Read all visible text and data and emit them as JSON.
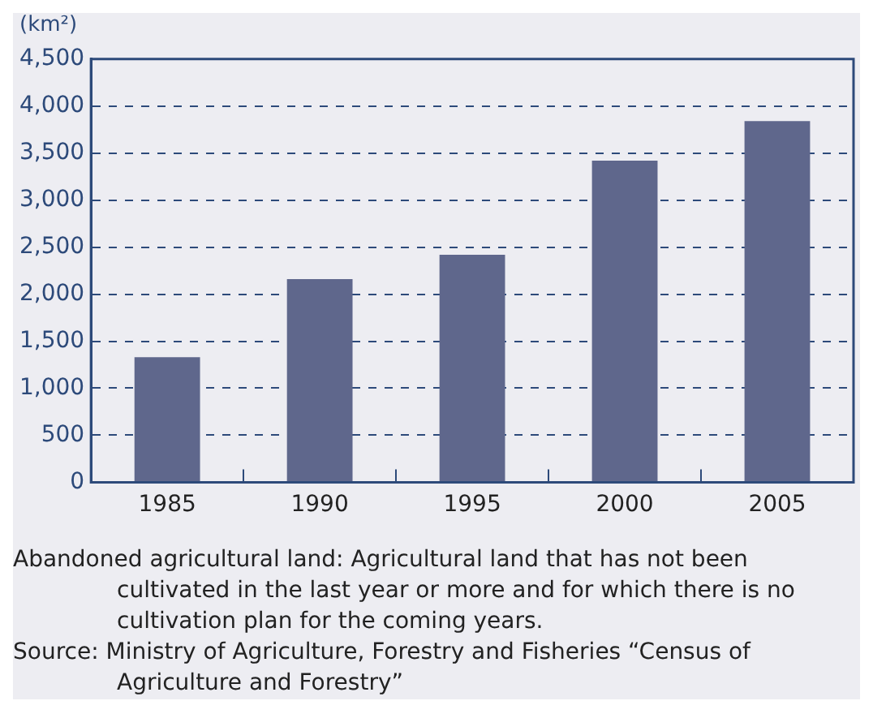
{
  "chart_data": {
    "type": "bar",
    "ylabel": "(km²)",
    "categories": [
      "1985",
      "1990",
      "1995",
      "2000",
      "2005"
    ],
    "values": [
      1330,
      2160,
      2420,
      3420,
      3840
    ],
    "color": "#5f678c",
    "ylim": [
      0,
      4500
    ],
    "yticks": [
      0,
      {
        "value": 500,
        "label": "500"
      },
      {
        "value": 1000,
        "label": "1,000"
      },
      {
        "value": 1500,
        "label": "1,500"
      },
      {
        "value": 2000,
        "label": "2,000"
      },
      {
        "value": 2500,
        "label": "2,500"
      },
      {
        "value": 3000,
        "label": "3,000"
      },
      {
        "value": 3500,
        "label": "3,500"
      },
      {
        "value": 4000,
        "label": "4,000"
      },
      {
        "value": 4500,
        "label": "4,500"
      }
    ],
    "grid": "y",
    "line_style": "dashed",
    "annotations": [
      "Abandoned agricultural land: Agricultural land that has not been cultivated in the last year or more and for which there is no cultivation plan for the coming years.",
      "Source: Ministry of Agriculture, Forestry and Fisheries “Census of Agriculture and Forestry”"
    ]
  }
}
